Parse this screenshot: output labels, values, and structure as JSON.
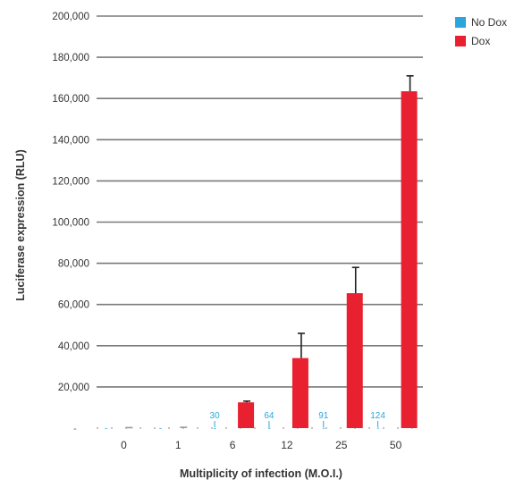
{
  "chart_data": {
    "type": "bar",
    "title": "",
    "xlabel": "Multiplicity of infection (M.O.I.)",
    "ylabel": "Luciferase expression (RLU)",
    "ylim": [
      0,
      200000
    ],
    "yticks": [
      0,
      20000,
      40000,
      60000,
      80000,
      100000,
      120000,
      140000,
      160000,
      180000,
      200000
    ],
    "ytick_labels": [
      "",
      "20,000",
      "40,000",
      "60,000",
      "80,000",
      "100,000",
      "120,000",
      "140,000",
      "160,000",
      "180,000",
      "200,000"
    ],
    "categories": [
      "0",
      "1",
      "6",
      "12",
      "25",
      "50"
    ],
    "series": [
      {
        "name": "No Dox",
        "color": "#2aa6dd",
        "values": [
          30,
          40,
          30,
          64,
          91,
          124
        ],
        "data_labels": [
          "",
          "",
          "30",
          "64",
          "91",
          "124"
        ]
      },
      {
        "name": "Dox",
        "color": "#e8202f",
        "values": [
          150,
          300,
          12500,
          34000,
          65500,
          163500
        ],
        "errors": [
          0,
          0,
          600,
          12000,
          12500,
          7500
        ]
      }
    ],
    "grid": true,
    "legend": "top-right"
  }
}
